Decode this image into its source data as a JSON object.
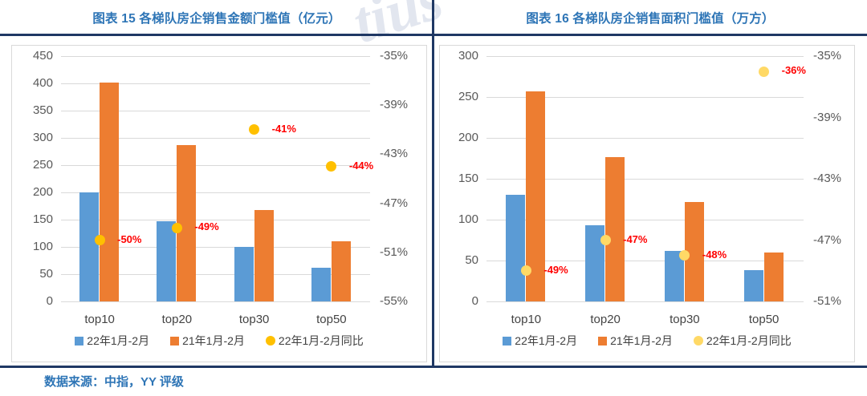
{
  "page": {
    "footer": "数据来源：中指，YY 评级",
    "watermark": "tius"
  },
  "colors": {
    "title_blue": "#2E75B6",
    "rule_navy": "#1F3864",
    "axis_text": "#595959",
    "gridline": "#D9D9D9",
    "bar_blue": "#5B9BD5",
    "bar_orange": "#ED7D31",
    "dot_gold": "#FFC000",
    "dot_light_yellow": "#FFD966",
    "data_label_red": "#FF0000"
  },
  "chart_data": [
    {
      "type": "bar+scatter",
      "title": "图表 15 各梯队房企销售金额门槛值（亿元）",
      "categories": [
        "top10",
        "top20",
        "top30",
        "top50"
      ],
      "series": [
        {
          "name": "22年1月-2月",
          "type": "bar",
          "axis": "y",
          "color": "#5B9BD5",
          "values": [
            200,
            147,
            100,
            62
          ]
        },
        {
          "name": "21年1月-2月",
          "type": "bar",
          "axis": "y",
          "color": "#ED7D31",
          "values": [
            402,
            287,
            168,
            110
          ]
        },
        {
          "name": "22年1月-2月同比",
          "type": "scatter",
          "axis": "y2",
          "color": "#FFC000",
          "label_color": "#FF0000",
          "values": [
            -50,
            -49,
            -41,
            -44
          ],
          "labels": [
            "-50%",
            "-49%",
            "-41%",
            "-44%"
          ]
        }
      ],
      "y_axis": {
        "min": 0,
        "max": 450,
        "ticks": [
          0,
          50,
          100,
          150,
          200,
          250,
          300,
          350,
          400,
          450
        ]
      },
      "y2_axis": {
        "min": -55,
        "max": -35,
        "ticks": [
          -35,
          -39,
          -43,
          -47,
          -51,
          -55
        ],
        "suffix": "%"
      },
      "grid": true,
      "legend_position": "bottom"
    },
    {
      "type": "bar+scatter",
      "title": "图表 16 各梯队房企销售面积门槛值（万方）",
      "categories": [
        "top10",
        "top20",
        "top30",
        "top50"
      ],
      "series": [
        {
          "name": "22年1月-2月",
          "type": "bar",
          "axis": "y",
          "color": "#5B9BD5",
          "values": [
            130,
            93,
            62,
            38
          ]
        },
        {
          "name": "21年1月-2月",
          "type": "bar",
          "axis": "y",
          "color": "#ED7D31",
          "values": [
            257,
            176,
            122,
            60
          ]
        },
        {
          "name": "22年1月-2月同比",
          "type": "scatter",
          "axis": "y2",
          "color": "#FFD966",
          "label_color": "#FF0000",
          "values": [
            -49,
            -47,
            -48,
            -36
          ],
          "labels": [
            "-49%",
            "-47%",
            "-48%",
            "-36%"
          ]
        }
      ],
      "y_axis": {
        "min": 0,
        "max": 300,
        "ticks": [
          0,
          50,
          100,
          150,
          200,
          250,
          300
        ]
      },
      "y2_axis": {
        "min": -51,
        "max": -35,
        "ticks": [
          -35,
          -39,
          -43,
          -47,
          -51
        ],
        "suffix": "%"
      },
      "grid": true,
      "legend_position": "bottom"
    }
  ]
}
